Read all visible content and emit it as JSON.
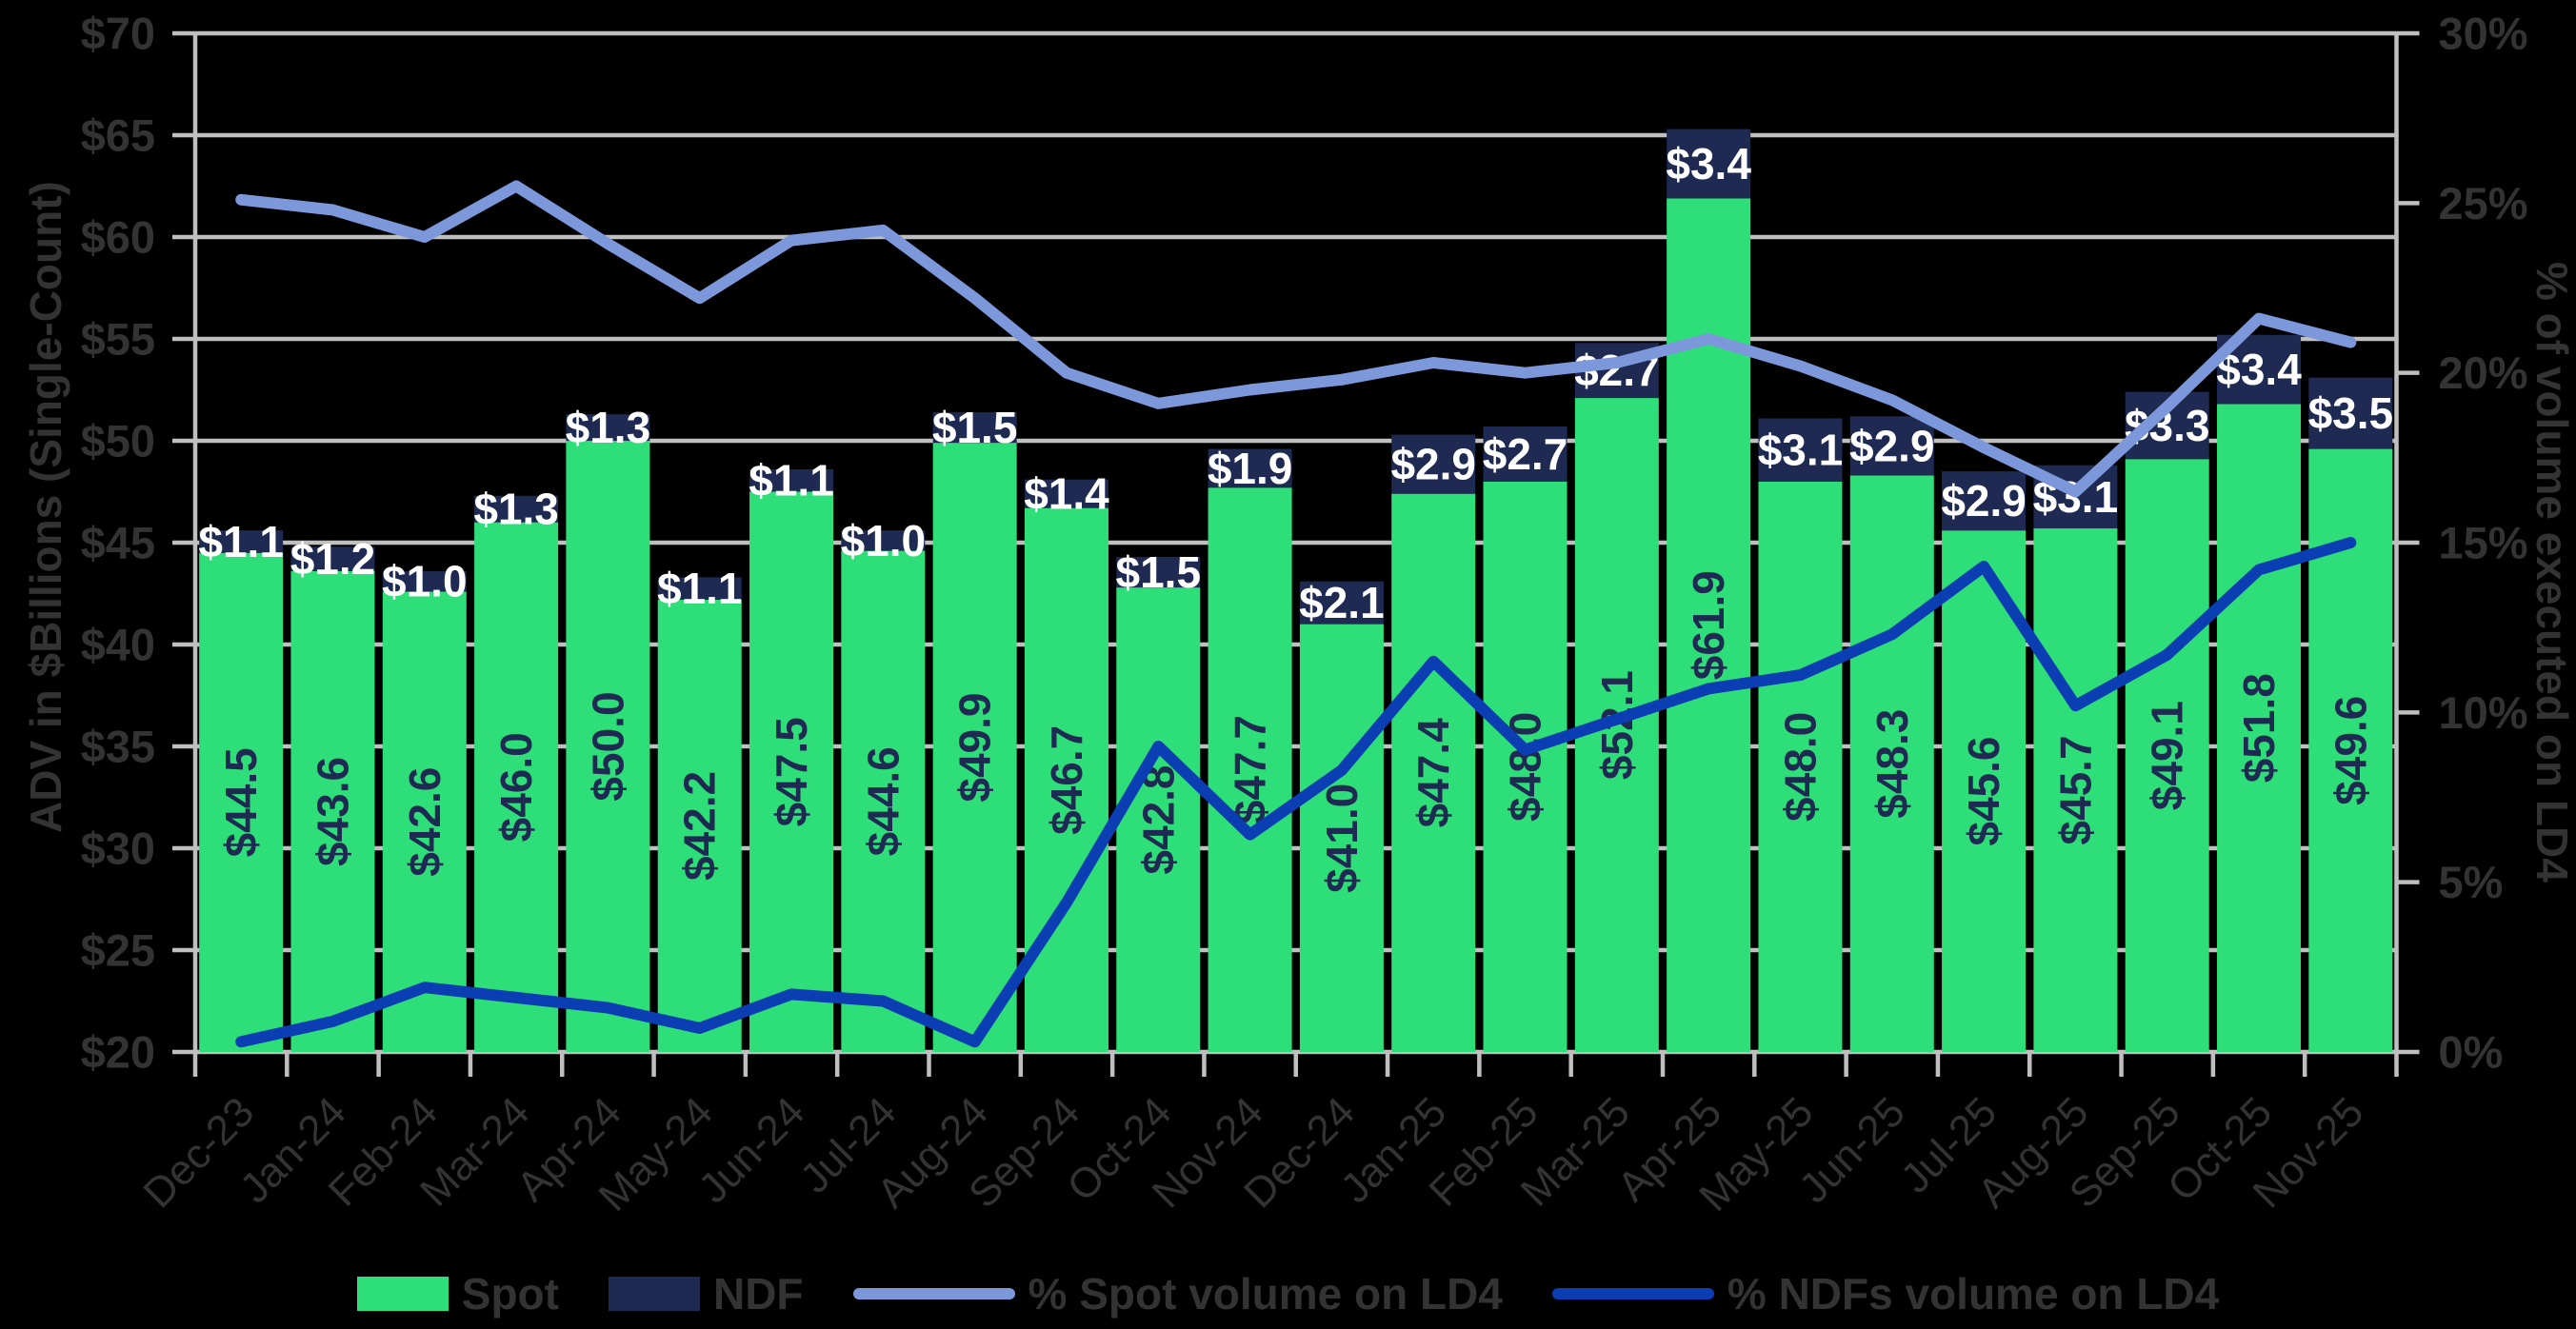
{
  "chart_data": {
    "type": "combo-bar-line",
    "title": "",
    "categories": [
      "Dec-23",
      "Jan-24",
      "Feb-24",
      "Mar-24",
      "Apr-24",
      "May-24",
      "Jun-24",
      "Jul-24",
      "Aug-24",
      "Sep-24",
      "Oct-24",
      "Nov-24",
      "Dec-24",
      "Jan-25",
      "Feb-25",
      "Mar-25",
      "Apr-25",
      "May-25",
      "Jun-25",
      "Jul-25",
      "Aug-25",
      "Sep-25",
      "Oct-25",
      "Nov-25"
    ],
    "series": [
      {
        "name": "Spot",
        "type": "bar",
        "axis": "left",
        "color": "#2EDE78",
        "label_color": "#1E2A52",
        "values": [
          44.5,
          43.6,
          42.6,
          46.0,
          50.0,
          42.2,
          47.5,
          44.6,
          49.9,
          46.7,
          42.8,
          47.7,
          41.0,
          47.4,
          48.0,
          52.1,
          61.9,
          48.0,
          48.3,
          45.6,
          45.7,
          49.1,
          51.8,
          49.6
        ]
      },
      {
        "name": "NDF",
        "type": "bar-stacked",
        "axis": "left",
        "color": "#1E2A52",
        "label_color": "#FFFFFF",
        "values": [
          1.1,
          1.2,
          1.0,
          1.3,
          1.3,
          1.1,
          1.1,
          1.0,
          1.5,
          1.4,
          1.5,
          1.9,
          2.1,
          2.9,
          2.7,
          2.7,
          3.4,
          3.1,
          2.9,
          2.9,
          3.1,
          3.3,
          3.4,
          3.5
        ]
      },
      {
        "name": "% Spot volume on LD4",
        "type": "line",
        "axis": "right",
        "color": "#7D97DB",
        "values": [
          25.1,
          24.8,
          24.0,
          25.5,
          23.8,
          22.2,
          23.9,
          24.2,
          22.2,
          20.0,
          19.1,
          19.5,
          19.8,
          20.3,
          20.0,
          20.3,
          21.0,
          20.2,
          19.2,
          17.8,
          16.5,
          19.0,
          21.6,
          20.9
        ]
      },
      {
        "name": "% NDFs volume on LD4",
        "type": "line",
        "axis": "right",
        "color": "#0B3DB3",
        "values": [
          0.3,
          0.9,
          1.9,
          1.6,
          1.3,
          0.7,
          1.7,
          1.5,
          0.3,
          4.4,
          9.0,
          6.4,
          8.3,
          11.5,
          8.9,
          9.8,
          10.7,
          11.1,
          12.3,
          14.3,
          10.2,
          11.7,
          14.2,
          15.0
        ]
      }
    ],
    "left_axis": {
      "title": "ADV in $Billions (Single-Count)",
      "min": 20,
      "max": 70,
      "step": 5,
      "prefix": "$",
      "suffix": ""
    },
    "right_axis": {
      "title": "% of volume executed on LD4",
      "min": 0,
      "max": 30,
      "step": 5,
      "prefix": "",
      "suffix": "%"
    },
    "grid": "horizontal",
    "background_color": "#000000",
    "grid_color": "#BFBFBF",
    "tick_label_color": "#333333",
    "value_label_prefix": "$"
  },
  "legend": {
    "items": [
      {
        "label": "Spot",
        "swatch": "rect",
        "color": "#2EDE78"
      },
      {
        "label": "NDF",
        "swatch": "rect",
        "color": "#1E2A52"
      },
      {
        "label": "% Spot volume on LD4",
        "swatch": "line",
        "color": "#7D97DB"
      },
      {
        "label": "% NDFs volume on LD4",
        "swatch": "line",
        "color": "#0B3DB3"
      }
    ]
  }
}
